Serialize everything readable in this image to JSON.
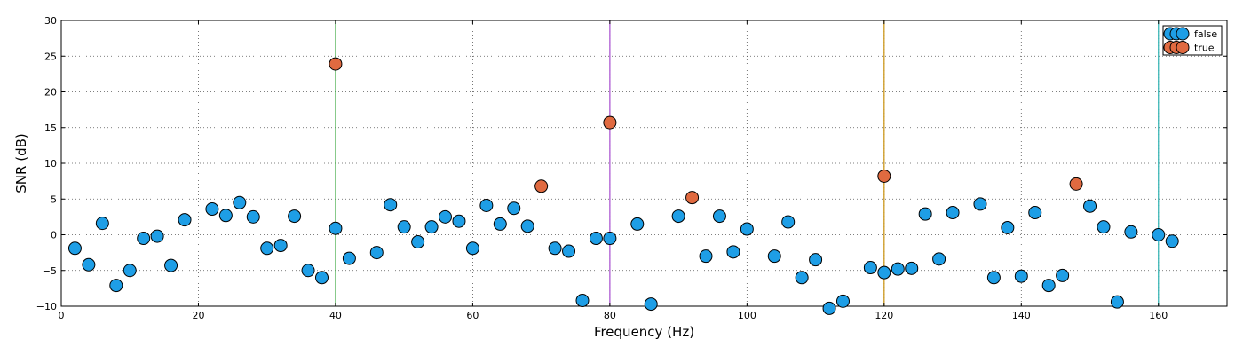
{
  "chart_data": {
    "type": "scatter",
    "title": "",
    "xlabel": "Frequency (Hz)",
    "ylabel": "SNR (dB)",
    "xlim": [
      0,
      170
    ],
    "ylim": [
      -10,
      30
    ],
    "x_ticks": [
      0,
      20,
      40,
      60,
      80,
      100,
      120,
      140,
      160
    ],
    "y_ticks": [
      -10,
      -5,
      0,
      5,
      10,
      15,
      20,
      25,
      30
    ],
    "grid": true,
    "legend_placement": "top-right",
    "vertical_lines": [
      {
        "x": 40,
        "color": "#4caf50"
      },
      {
        "x": 80,
        "color": "#a64ccf"
      },
      {
        "x": 120,
        "color": "#c8900a"
      },
      {
        "x": 160,
        "color": "#2ab0b0"
      }
    ],
    "series": [
      {
        "name": "false",
        "color": "#1e9ee6",
        "x": [
          2,
          4,
          6,
          8,
          10,
          12,
          14,
          16,
          18,
          22,
          24,
          26,
          28,
          30,
          32,
          34,
          36,
          38,
          40,
          42,
          46,
          48,
          50,
          52,
          54,
          56,
          58,
          60,
          62,
          64,
          66,
          68,
          72,
          74,
          76,
          78,
          80,
          84,
          86,
          90,
          94,
          96,
          98,
          100,
          104,
          106,
          108,
          110,
          112,
          114,
          118,
          120,
          122,
          124,
          126,
          128,
          130,
          134,
          136,
          138,
          140,
          142,
          144,
          146,
          150,
          152,
          154,
          156,
          160,
          162
        ],
        "y": [
          -1.9,
          -4.2,
          1.6,
          -7.1,
          -5.0,
          -0.5,
          -0.2,
          -4.3,
          2.1,
          3.6,
          2.7,
          4.5,
          2.5,
          -1.9,
          -1.5,
          2.6,
          -5.0,
          -6.0,
          0.9,
          -3.3,
          -2.5,
          4.2,
          1.1,
          -1.0,
          1.1,
          2.5,
          1.9,
          -1.9,
          4.1,
          1.5,
          3.7,
          1.2,
          -1.9,
          -2.3,
          -9.2,
          -0.5,
          -0.5,
          1.5,
          -9.7,
          2.6,
          -3.0,
          2.6,
          -2.4,
          0.8,
          -3.0,
          1.8,
          -6.0,
          -3.5,
          -10.3,
          -9.3,
          -4.6,
          -5.3,
          -4.8,
          -4.7,
          2.9,
          -3.4,
          3.1,
          4.3,
          -6.0,
          1.0,
          -5.8,
          3.1,
          -7.1,
          -5.7,
          4.0,
          1.1,
          -9.4,
          0.4,
          0.0,
          -0.9
        ]
      },
      {
        "name": "true",
        "color": "#e06a40",
        "x": [
          40,
          70,
          80,
          92,
          120,
          148
        ],
        "y": [
          23.9,
          6.8,
          15.7,
          5.2,
          8.2,
          7.1
        ]
      }
    ]
  }
}
